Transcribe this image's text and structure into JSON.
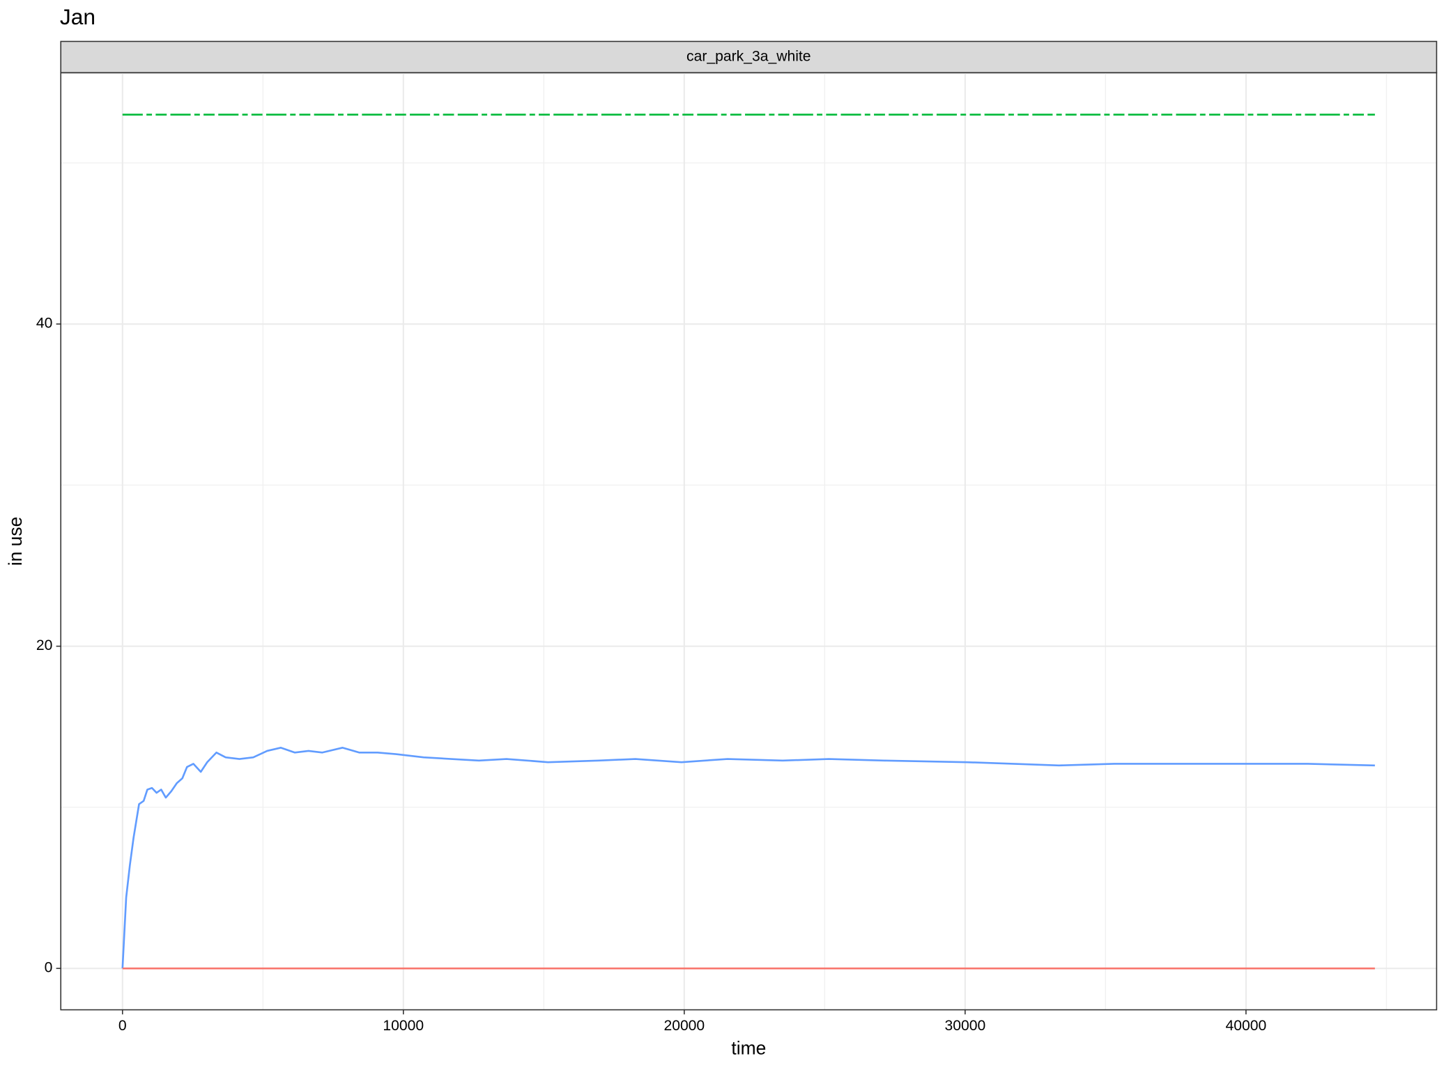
{
  "chart_data": {
    "type": "line",
    "title": "Jan",
    "facet": "car_park_3a_white",
    "x_label": "time",
    "y_label": "in use",
    "xlim": [
      -2197,
      46787
    ],
    "ylim": [
      -2.57,
      55.6
    ],
    "xticks": [
      0,
      10000,
      20000,
      30000,
      40000
    ],
    "yticks": [
      0,
      20,
      40
    ],
    "grid": true,
    "series": [
      {
        "color": "#619CFF",
        "dash": "solid",
        "x": [
          0,
          131,
          262,
          393,
          590,
          754,
          885,
          1049,
          1213,
          1377,
          1541,
          1738,
          1934,
          2131,
          2295,
          2525,
          2787,
          3016,
          3344,
          3672,
          4164,
          4656,
          5148,
          5639,
          6131,
          6623,
          7115,
          7836,
          8426,
          9082,
          9738,
          10721,
          11705,
          12689,
          13672,
          15148,
          16951,
          18262,
          19902,
          21541,
          23508,
          25148,
          27115,
          30066,
          31705,
          33344,
          35311,
          37607,
          39902,
          42197,
          44590
        ],
        "values": [
          0,
          4.4,
          6.4,
          8.1,
          10.2,
          10.4,
          11.1,
          11.2,
          10.9,
          11.1,
          10.6,
          11.0,
          11.5,
          11.8,
          12.5,
          12.7,
          12.2,
          12.8,
          13.4,
          13.1,
          13.0,
          13.1,
          13.5,
          13.7,
          13.4,
          13.5,
          13.4,
          13.7,
          13.4,
          13.4,
          13.3,
          13.1,
          13.0,
          12.9,
          13.0,
          12.8,
          12.9,
          13.0,
          12.8,
          13.0,
          12.9,
          13.0,
          12.9,
          12.8,
          12.7,
          12.6,
          12.7,
          12.7,
          12.7,
          12.7,
          12.6
        ]
      },
      {
        "color": "#F8766D",
        "dash": "solid",
        "x": [
          0,
          44590
        ],
        "values": [
          0,
          0
        ]
      },
      {
        "color": "#00BA38",
        "dash": "dashdot",
        "x": [
          0,
          44590
        ],
        "values": [
          53,
          53
        ]
      }
    ]
  }
}
